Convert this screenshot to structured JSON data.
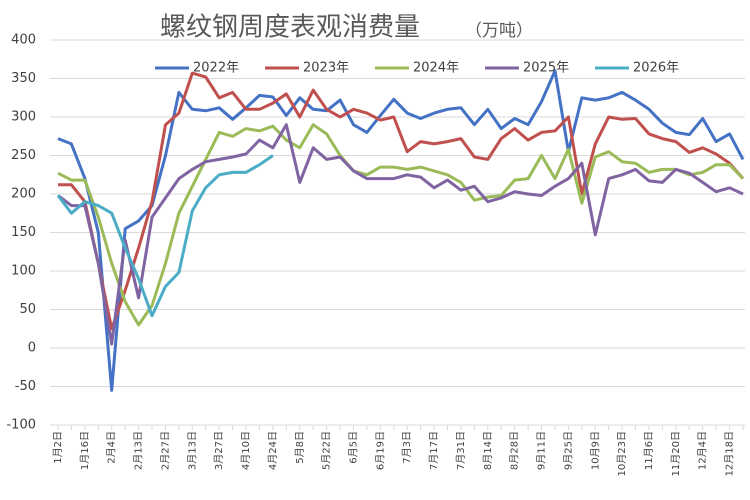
{
  "chart_data": {
    "type": "line",
    "title": "螺纹钢周度表观消费量",
    "subtitle": "（万吨）",
    "categories": [
      "1月2日",
      null,
      "1月16日",
      null,
      "2月4日",
      null,
      "2月13日",
      null,
      "2月27日",
      null,
      "3月13日",
      null,
      "3月27日",
      null,
      "4月10日",
      null,
      "4月24日",
      null,
      "5月8日",
      null,
      "5月22日",
      null,
      "6月5日",
      null,
      "6月19日",
      null,
      "7月3日",
      null,
      "7月17日",
      null,
      "7月31日",
      null,
      "8月14日",
      null,
      "8月28日",
      null,
      "9月11日",
      null,
      "9月25日",
      null,
      "10月9日",
      null,
      "10月23日",
      null,
      "11月6日",
      null,
      "11月20日",
      null,
      "12月4日",
      null,
      "12月18日",
      null
    ],
    "series": [
      {
        "name": "2022年",
        "color": "#4472c4",
        "values": [
          272,
          265,
          220,
          150,
          -55,
          155,
          165,
          185,
          250,
          332,
          310,
          308,
          312,
          297,
          312,
          328,
          326,
          302,
          325,
          310,
          308,
          322,
          290,
          280,
          302,
          323,
          305,
          298,
          305,
          310,
          312,
          290,
          310,
          285,
          298,
          290,
          320,
          360,
          255,
          325,
          322,
          325,
          332,
          322,
          310,
          292,
          280,
          277,
          298,
          268,
          278,
          245
        ]
      },
      {
        "name": "2023年",
        "color": "#c0504d",
        "values": [
          212,
          212,
          190,
          110,
          25,
          75,
          130,
          190,
          290,
          305,
          357,
          352,
          325,
          332,
          310,
          310,
          318,
          330,
          300,
          335,
          310,
          300,
          310,
          305,
          296,
          300,
          255,
          268,
          265,
          268,
          272,
          248,
          245,
          272,
          285,
          270,
          280,
          282,
          300,
          200,
          265,
          300,
          297,
          298,
          278,
          272,
          268,
          254,
          260,
          252,
          240,
          220
        ]
      },
      {
        "name": "2024年",
        "color": "#9bbb59",
        "values": [
          227,
          218,
          218,
          170,
          110,
          60,
          30,
          55,
          110,
          175,
          210,
          245,
          280,
          275,
          285,
          282,
          288,
          270,
          260,
          290,
          278,
          250,
          230,
          225,
          235,
          235,
          232,
          235,
          230,
          225,
          215,
          192,
          196,
          198,
          218,
          220,
          250,
          220,
          258,
          188,
          248,
          255,
          242,
          240,
          228,
          232,
          232,
          225,
          228,
          238,
          238,
          220
        ]
      },
      {
        "name": "2025年",
        "color": "#8064a2",
        "values": [
          198,
          185,
          185,
          110,
          5,
          140,
          65,
          170,
          195,
          220,
          232,
          242,
          245,
          248,
          252,
          270,
          260,
          290,
          215,
          260,
          245,
          248,
          230,
          220,
          220,
          220,
          225,
          222,
          208,
          218,
          205,
          210,
          190,
          195,
          203,
          200,
          198,
          210,
          220,
          240,
          147,
          220,
          225,
          232,
          217,
          215,
          232,
          227,
          215,
          203,
          208,
          200
        ]
      },
      {
        "name": "2026年",
        "color": "#4bacc6",
        "values": [
          198,
          175,
          190,
          185,
          175,
          130,
          90,
          42,
          80,
          98,
          178,
          208,
          225,
          228,
          228,
          238,
          250,
          null,
          null,
          null,
          null,
          null,
          null,
          null,
          null,
          null,
          null,
          null,
          null,
          null,
          null,
          null,
          null,
          null,
          null,
          null,
          null,
          null,
          null,
          null,
          null,
          null,
          null,
          null,
          null,
          null,
          null,
          null,
          null,
          null,
          null,
          null
        ]
      }
    ],
    "ylim": [
      -100,
      400
    ],
    "yticks": [
      -100,
      -50,
      0,
      50,
      100,
      150,
      200,
      250,
      300,
      350,
      400
    ],
    "grid": true
  }
}
